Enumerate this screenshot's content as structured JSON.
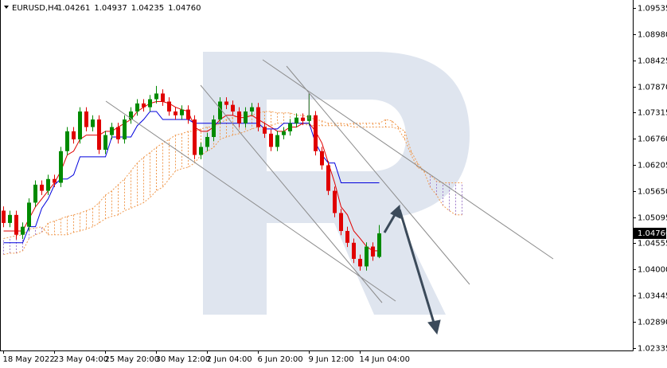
{
  "chart_data": {
    "type": "candlestick",
    "symbol": "EURUSD,H4",
    "ohlc": [
      "1.04261",
      "1.04937",
      "1.04235",
      "1.04760"
    ],
    "categories": [
      "18 May 2022",
      null,
      null,
      null,
      null,
      null,
      null,
      null,
      "23 May 04:00",
      null,
      null,
      null,
      null,
      null,
      null,
      null,
      "25 May 20:00",
      null,
      null,
      null,
      null,
      null,
      null,
      null,
      "30 May 12:00",
      null,
      null,
      null,
      null,
      null,
      null,
      null,
      "2 Jun 04:00",
      null,
      null,
      null,
      null,
      null,
      null,
      null,
      "6 Jun 20:00",
      null,
      null,
      null,
      null,
      null,
      null,
      null,
      "9 Jun 12:00",
      null,
      null,
      null,
      null,
      null,
      null,
      null,
      "14 Jun 04:00",
      null,
      null,
      null
    ],
    "open": [
      1.0524,
      1.0498,
      1.0515,
      1.0473,
      1.049,
      1.0541,
      1.0579,
      1.0566,
      1.0591,
      1.0583,
      1.065,
      1.0692,
      1.0675,
      1.0734,
      1.0701,
      1.0717,
      1.0653,
      1.0684,
      1.0701,
      1.0675,
      1.0717,
      1.0734,
      1.0751,
      1.0743,
      1.076,
      1.0772,
      1.0755,
      1.0734,
      1.0726,
      1.0738,
      1.0717,
      1.0642,
      1.0659,
      1.068,
      1.0717,
      1.0755,
      1.0748,
      1.0734,
      1.0709,
      1.0734,
      1.0743,
      1.0701,
      1.0687,
      1.0659,
      1.0684,
      1.0692,
      1.0709,
      1.0721,
      1.0714,
      1.0726,
      1.065,
      1.062,
      1.0566,
      1.0519,
      1.0481,
      1.0456,
      1.0422,
      1.0406,
      1.0448,
      1.04261
    ],
    "high": [
      1.0533,
      1.0524,
      1.0524,
      1.0499,
      1.055,
      1.0588,
      1.0588,
      1.06,
      1.06,
      1.0659,
      1.0701,
      1.0701,
      1.0743,
      1.0743,
      1.0726,
      1.0726,
      1.0693,
      1.071,
      1.071,
      1.0726,
      1.0743,
      1.076,
      1.076,
      1.0769,
      1.0788,
      1.0781,
      1.0764,
      1.0743,
      1.0747,
      1.0747,
      1.0726,
      1.0668,
      1.0689,
      1.0726,
      1.0764,
      1.0764,
      1.0757,
      1.0743,
      1.0743,
      1.0752,
      1.0752,
      1.071,
      1.0696,
      1.0693,
      1.0701,
      1.0718,
      1.073,
      1.073,
      1.0773,
      1.0735,
      1.0659,
      1.0629,
      1.0575,
      1.0528,
      1.049,
      1.0465,
      1.0431,
      1.0457,
      1.0457,
      1.04937
    ],
    "low": [
      1.0489,
      1.0489,
      1.0463,
      1.0464,
      1.0481,
      1.0532,
      1.0557,
      1.0557,
      1.0574,
      1.0574,
      1.0641,
      1.0666,
      1.0666,
      1.0692,
      1.0692,
      1.0644,
      1.0644,
      1.0675,
      1.0666,
      1.0666,
      1.0708,
      1.0725,
      1.0734,
      1.0734,
      1.0751,
      1.0746,
      1.0725,
      1.0717,
      1.0717,
      1.0708,
      1.0633,
      1.0633,
      1.065,
      1.0671,
      1.0708,
      1.0739,
      1.0725,
      1.07,
      1.07,
      1.0725,
      1.0692,
      1.0678,
      1.065,
      1.065,
      1.0675,
      1.0683,
      1.07,
      1.0705,
      1.0705,
      1.0641,
      1.0611,
      1.0557,
      1.051,
      1.0472,
      1.0447,
      1.0413,
      1.0397,
      1.0397,
      1.0418,
      1.04235
    ],
    "close": [
      1.0498,
      1.0515,
      1.0473,
      1.049,
      1.0541,
      1.0579,
      1.0566,
      1.0591,
      1.0583,
      1.065,
      1.0692,
      1.0675,
      1.0734,
      1.0701,
      1.0717,
      1.0653,
      1.0684,
      1.0701,
      1.0675,
      1.0717,
      1.0734,
      1.0751,
      1.0743,
      1.076,
      1.0772,
      1.0755,
      1.0734,
      1.0726,
      1.0738,
      1.0717,
      1.0642,
      1.0659,
      1.068,
      1.0717,
      1.0755,
      1.0748,
      1.0734,
      1.0709,
      1.0734,
      1.0743,
      1.0701,
      1.0687,
      1.0659,
      1.0684,
      1.0692,
      1.0709,
      1.0721,
      1.0714,
      1.0726,
      1.065,
      1.062,
      1.0566,
      1.0519,
      1.0481,
      1.0456,
      1.0422,
      1.0406,
      1.0448,
      1.0427,
      1.0476
    ],
    "up_color": "#008a00",
    "down_color": "#e00000",
    "lines": [
      {
        "color": "#e00000",
        "values": [
          1.0481,
          1.0481,
          1.0481,
          1.0481,
          1.0507,
          1.0532,
          1.0549,
          1.0566,
          1.0583,
          1.0608,
          1.0642,
          1.065,
          1.0675,
          1.0684,
          1.0684,
          1.0684,
          1.0692,
          1.0692,
          1.0701,
          1.0709,
          1.0717,
          1.0734,
          1.0743,
          1.0751,
          1.0755,
          1.0755,
          1.0751,
          1.0743,
          1.0738,
          1.0734,
          1.0701,
          1.0692,
          1.0692,
          1.0701,
          1.0717,
          1.0726,
          1.0726,
          1.0721,
          1.0721,
          1.0726,
          1.0717,
          1.0709,
          1.0701,
          1.0692,
          1.0692,
          1.0701,
          1.0701,
          1.0709,
          1.0709,
          1.0692,
          1.0667,
          1.0625,
          1.0583,
          1.0532,
          1.0515,
          1.0481,
          1.0465,
          1.0448,
          1.0439,
          1.0439
        ]
      },
      {
        "color": "#0000dd",
        "values": [
          1.0456,
          1.0456,
          1.0456,
          1.0456,
          1.049,
          1.049,
          1.0529,
          1.0549,
          1.0579,
          1.0591,
          1.0591,
          1.06,
          1.0638,
          1.0638,
          1.0638,
          1.0638,
          1.0638,
          1.068,
          1.068,
          1.068,
          1.068,
          1.0704,
          1.0717,
          1.0734,
          1.0734,
          1.0717,
          1.0717,
          1.0717,
          1.0717,
          1.0717,
          1.0709,
          1.0709,
          1.0709,
          1.0709,
          1.0709,
          1.0709,
          1.0709,
          1.0709,
          1.0709,
          1.0709,
          1.0709,
          1.0697,
          1.0697,
          1.0697,
          1.0709,
          1.0709,
          1.0709,
          1.0709,
          1.0709,
          1.0667,
          1.0642,
          1.0625,
          1.0625,
          1.0583,
          1.0583,
          1.0583,
          1.0583,
          1.0583,
          1.0583,
          1.0583
        ]
      }
    ],
    "cloud": {
      "up_color": "#f09a50",
      "down_color": "#a07ccc",
      "span_a": [
        1.0431,
        1.0434,
        1.0434,
        1.0439,
        1.0465,
        1.0473,
        1.0478,
        1.0498,
        1.0502,
        1.0507,
        1.0512,
        1.0515,
        1.0519,
        1.0524,
        1.0529,
        1.0541,
        1.0557,
        1.0566,
        1.0579,
        1.0591,
        1.0608,
        1.0625,
        1.0637,
        1.0647,
        1.0658,
        1.0667,
        1.0675,
        1.0684,
        1.0687,
        1.0692,
        1.0692,
        1.0697,
        1.0701,
        1.0701,
        1.0709,
        1.0717,
        1.0721,
        1.0726,
        1.0726,
        1.0726,
        1.0731,
        1.0734,
        1.0734,
        1.0731,
        1.0731,
        1.0731,
        1.0726,
        1.0726,
        1.0721,
        1.0717,
        1.0714,
        1.0709,
        1.0709,
        1.0709,
        1.0707,
        1.0709,
        1.0709,
        1.0709,
        1.0709,
        1.0709,
        1.0717,
        1.0714,
        1.0701,
        1.0692,
        1.065,
        1.0625,
        1.0608,
        1.0574,
        1.0557,
        1.0535,
        1.0524,
        1.0515,
        1.0515
      ],
      "span_b": [
        1.0465,
        1.0468,
        1.0471,
        1.0473,
        1.0485,
        1.0487,
        1.049,
        1.0473,
        1.0473,
        1.0473,
        1.0473,
        1.0478,
        1.0481,
        1.0485,
        1.049,
        1.0498,
        1.0507,
        1.0512,
        1.0515,
        1.0524,
        1.0529,
        1.0535,
        1.0541,
        1.0552,
        1.0566,
        1.0574,
        1.0591,
        1.0608,
        1.0613,
        1.0616,
        1.0625,
        1.0642,
        1.065,
        1.0658,
        1.0675,
        1.068,
        1.0684,
        1.0687,
        1.0692,
        1.0697,
        1.0701,
        1.0701,
        1.0704,
        1.0709,
        1.0709,
        1.0709,
        1.0709,
        1.0709,
        1.0704,
        1.0704,
        1.0704,
        1.0704,
        1.0704,
        1.0704,
        1.0704,
        1.0701,
        1.0701,
        1.0701,
        1.0701,
        1.0701,
        1.0701,
        1.0701,
        1.0697,
        1.0675,
        1.0642,
        1.0616,
        1.0608,
        1.06,
        1.0586,
        1.0583,
        1.0583,
        1.0583,
        1.0583
      ]
    },
    "ylim": [
      1.0228,
      1.097
    ],
    "yticks": [
      1.09535,
      {
        "value": 1.0898,
        "label": "1.08980"
      },
      1.08425,
      {
        "value": 1.0787,
        "label": "1.07870"
      },
      1.07315,
      {
        "value": 1.0676,
        "label": "1.06760"
      },
      1.06205,
      {
        "value": 1.0565,
        "label": "1.05650"
      },
      1.05095,
      1.04555,
      {
        "value": 1.04,
        "label": "1.04000"
      },
      1.03445,
      {
        "value": 1.0289,
        "label": "1.02890"
      },
      1.02335
    ],
    "grid": false
  }
}
